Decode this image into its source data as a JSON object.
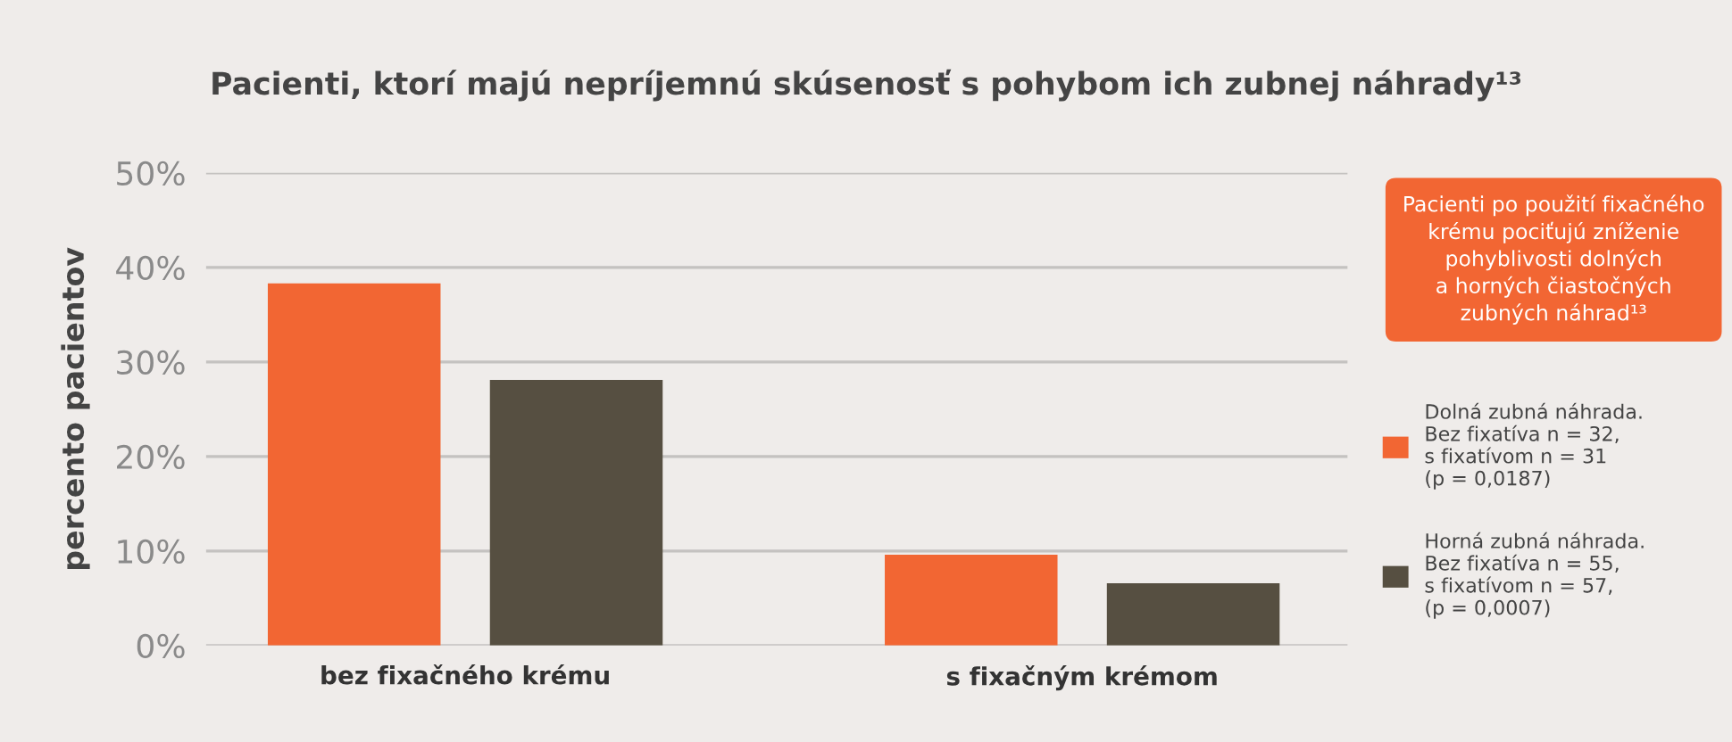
{
  "chart_data": {
    "type": "bar",
    "title": "Pacienti, ktorí majú nepríjemnú skúsenosť s pohybom ich zubnej náhrady¹³",
    "ylabel": "percento pacientov",
    "categories": [
      "bez fixačného krému",
      "s fixačným krémom"
    ],
    "series": [
      {
        "name": "Dolná zubná náhrada.\nBez fixatíva n = 32,\ns fixatívom n = 31\n(p = 0,0187)",
        "color": "#f26633",
        "values": [
          38.3,
          9.6
        ]
      },
      {
        "name": "Horná zubná náhrada.\nBez fixatíva n = 55,\ns fixatívom n = 57,\n(p = 0,0007)",
        "color": "#564f41",
        "values": [
          28.1,
          6.6
        ]
      }
    ],
    "ylim": [
      0,
      50
    ],
    "yticks": [
      {
        "value": 0,
        "label": "0%"
      },
      {
        "value": 10,
        "label": "10%"
      },
      {
        "value": 20,
        "label": "20%"
      },
      {
        "value": 30,
        "label": "30%"
      },
      {
        "value": 40,
        "label": "40%"
      },
      {
        "value": 50,
        "label": "50%"
      }
    ],
    "grid": "y",
    "legend": "right",
    "annotations": [
      "Pacienti po použití fixačného\nkrému pociťujú zníženie\npohyblivosti dolných\na horných čiastočných\nzubných náhrad¹³"
    ]
  }
}
